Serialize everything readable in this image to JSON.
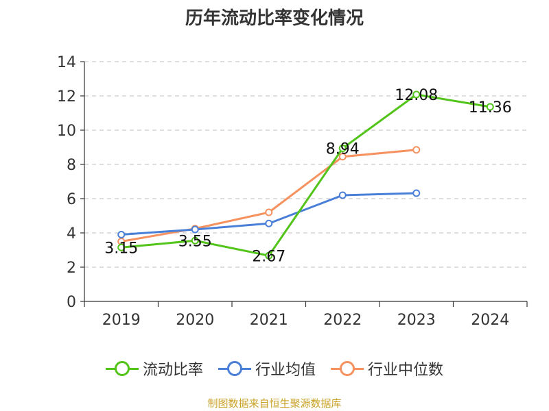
{
  "chart_data": {
    "type": "line",
    "title": "历年流动比率变化情况",
    "categories": [
      "2019",
      "2020",
      "2021",
      "2022",
      "2023",
      "2024"
    ],
    "ylim": [
      0,
      14
    ],
    "yticks": [
      0,
      2,
      4,
      6,
      8,
      10,
      12,
      14
    ],
    "grid": true,
    "legend_position": "bottom",
    "series": [
      {
        "name": "流动比率",
        "color": "#52c41a",
        "values": [
          3.15,
          3.55,
          2.67,
          8.94,
          12.08,
          11.36
        ],
        "labels": [
          "3.15",
          "3.55",
          "2.67",
          "8.94",
          "12.08",
          "11.36"
        ]
      },
      {
        "name": "行业均值",
        "color": "#4a7fd8",
        "values": [
          3.9,
          4.2,
          4.55,
          6.2,
          6.32,
          null
        ]
      },
      {
        "name": "行业中位数",
        "color": "#f59260",
        "values": [
          3.5,
          4.25,
          5.2,
          8.45,
          8.85,
          null
        ]
      }
    ]
  },
  "source": "制图数据来自恒生聚源数据库"
}
